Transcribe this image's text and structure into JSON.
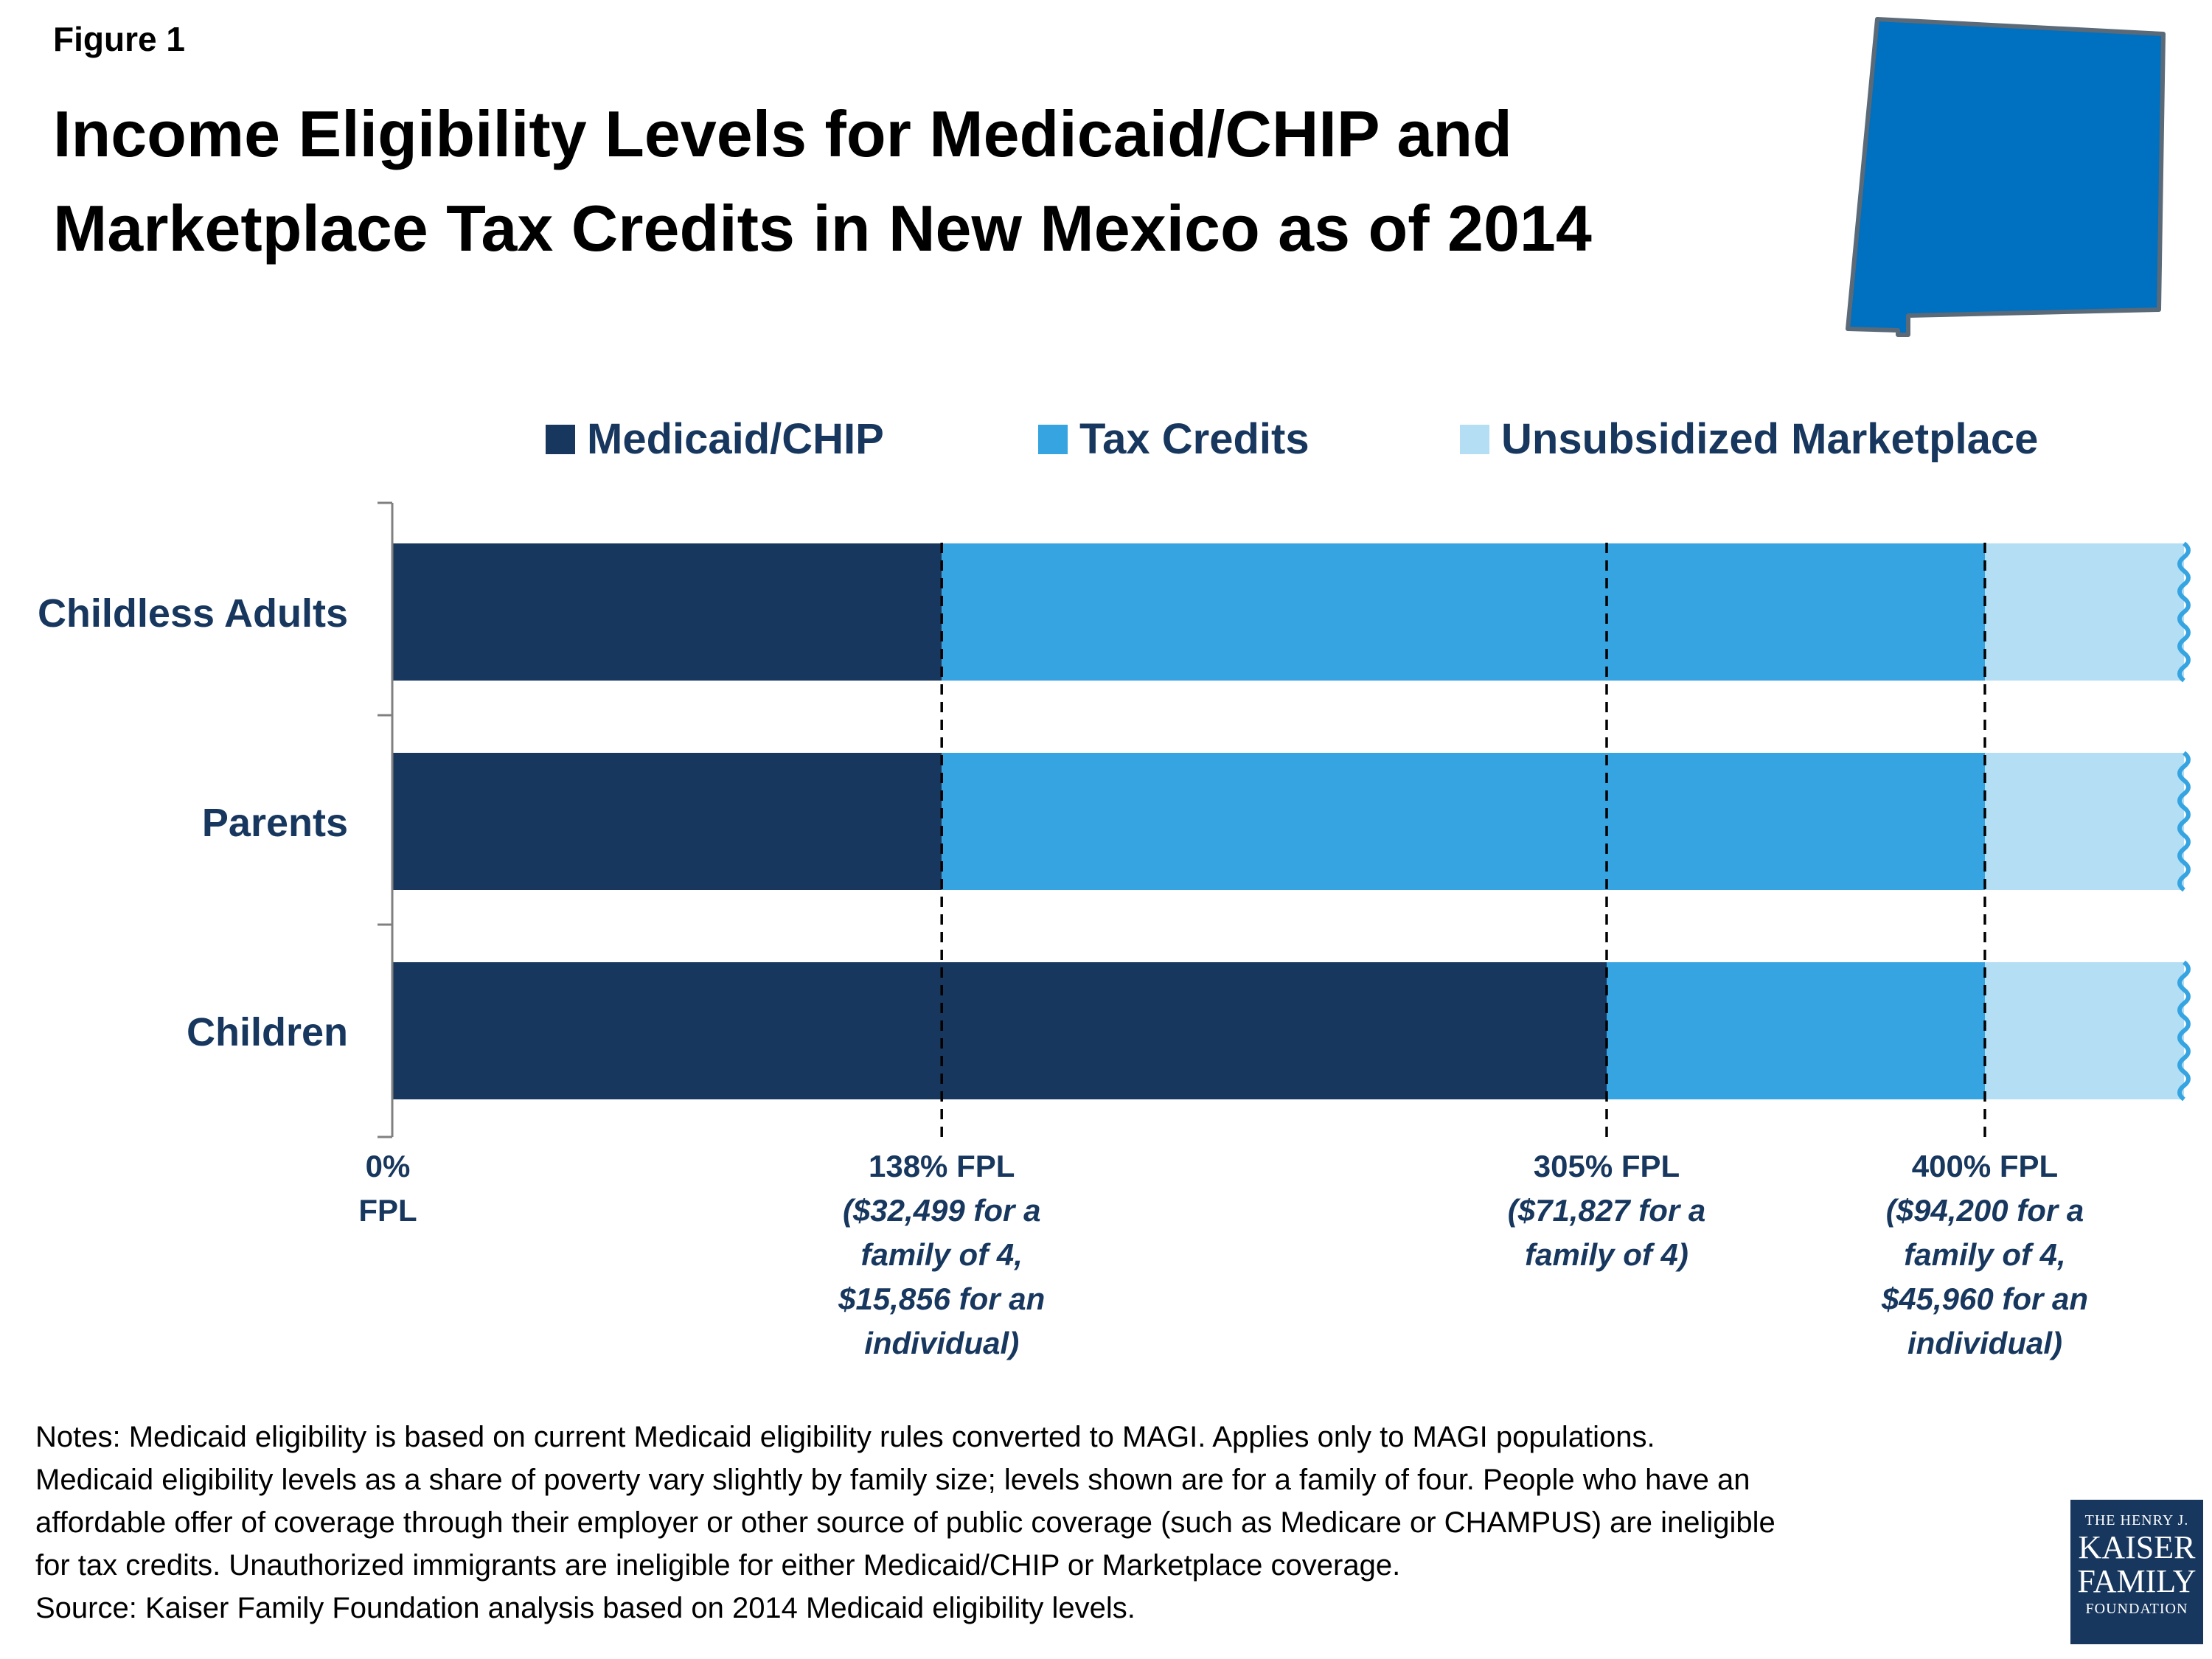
{
  "figure_label": "Figure 1",
  "title_lines": [
    "Income Eligibility Levels for Medicaid/CHIP and",
    "Marketplace Tax Credits in New Mexico as of 2014"
  ],
  "notes_lines": [
    "Notes: Medicaid eligibility is based on current Medicaid eligibility rules converted to MAGI. Applies only to MAGI populations.",
    "Medicaid eligibility levels as a share of poverty vary slightly by family size; levels shown are for a family of four. People who have an",
    "affordable offer of coverage through their employer or other source of public coverage (such as Medicare or CHAMPUS) are ineligible",
    "for tax credits. Unauthorized immigrants are ineligible for either Medicaid/CHIP or Marketplace coverage.",
    "Source: Kaiser Family Foundation analysis based on 2014 Medicaid eligibility levels."
  ],
  "logo": {
    "line1": "THE HENRY J.",
    "line2": "KAISER",
    "line3": "FAMILY",
    "line4": "FOUNDATION"
  },
  "colors": {
    "medicaid": "#17375e",
    "tax_credits": "#35a4e1",
    "unsubsidized": "#b3def4",
    "map": "#0070c0",
    "label_text": "#17375e"
  },
  "map_icon": "new-mexico-state-icon",
  "chart_data": {
    "type": "bar",
    "orientation": "horizontal",
    "stacked": true,
    "categories": [
      "Childless Adults",
      "Parents",
      "Children"
    ],
    "series": [
      {
        "name": "Medicaid/CHIP",
        "color": "#17375e",
        "ranges": [
          [
            0,
            138
          ],
          [
            0,
            138
          ],
          [
            0,
            305
          ]
        ]
      },
      {
        "name": "Tax Credits",
        "color": "#35a4e1",
        "ranges": [
          [
            138,
            400
          ],
          [
            138,
            400
          ],
          [
            305,
            400
          ]
        ]
      },
      {
        "name": "Unsubsidized Marketplace",
        "color": "#b3def4",
        "ranges": [
          [
            400,
            450
          ],
          [
            400,
            450
          ],
          [
            400,
            450
          ]
        ]
      }
    ],
    "xlim": [
      0,
      450
    ],
    "legend_position": "top",
    "markers": [
      {
        "value": 0,
        "dashed": false,
        "label_lines": [
          "0%",
          "FPL"
        ],
        "italic_lines": []
      },
      {
        "value": 138,
        "dashed": true,
        "label_lines": [
          "138% FPL"
        ],
        "italic_lines": [
          "($32,499 for a",
          "family of 4,",
          "$15,856 for an",
          "individual)"
        ]
      },
      {
        "value": 305,
        "dashed": true,
        "label_lines": [
          "305% FPL"
        ],
        "italic_lines": [
          "($71,827 for a",
          "family of 4)"
        ]
      },
      {
        "value": 400,
        "dashed": true,
        "label_lines": [
          "400% FPL"
        ],
        "italic_lines": [
          "($94,200 for a",
          "family of 4,",
          "$45,960 for an",
          "individual)"
        ]
      }
    ]
  }
}
